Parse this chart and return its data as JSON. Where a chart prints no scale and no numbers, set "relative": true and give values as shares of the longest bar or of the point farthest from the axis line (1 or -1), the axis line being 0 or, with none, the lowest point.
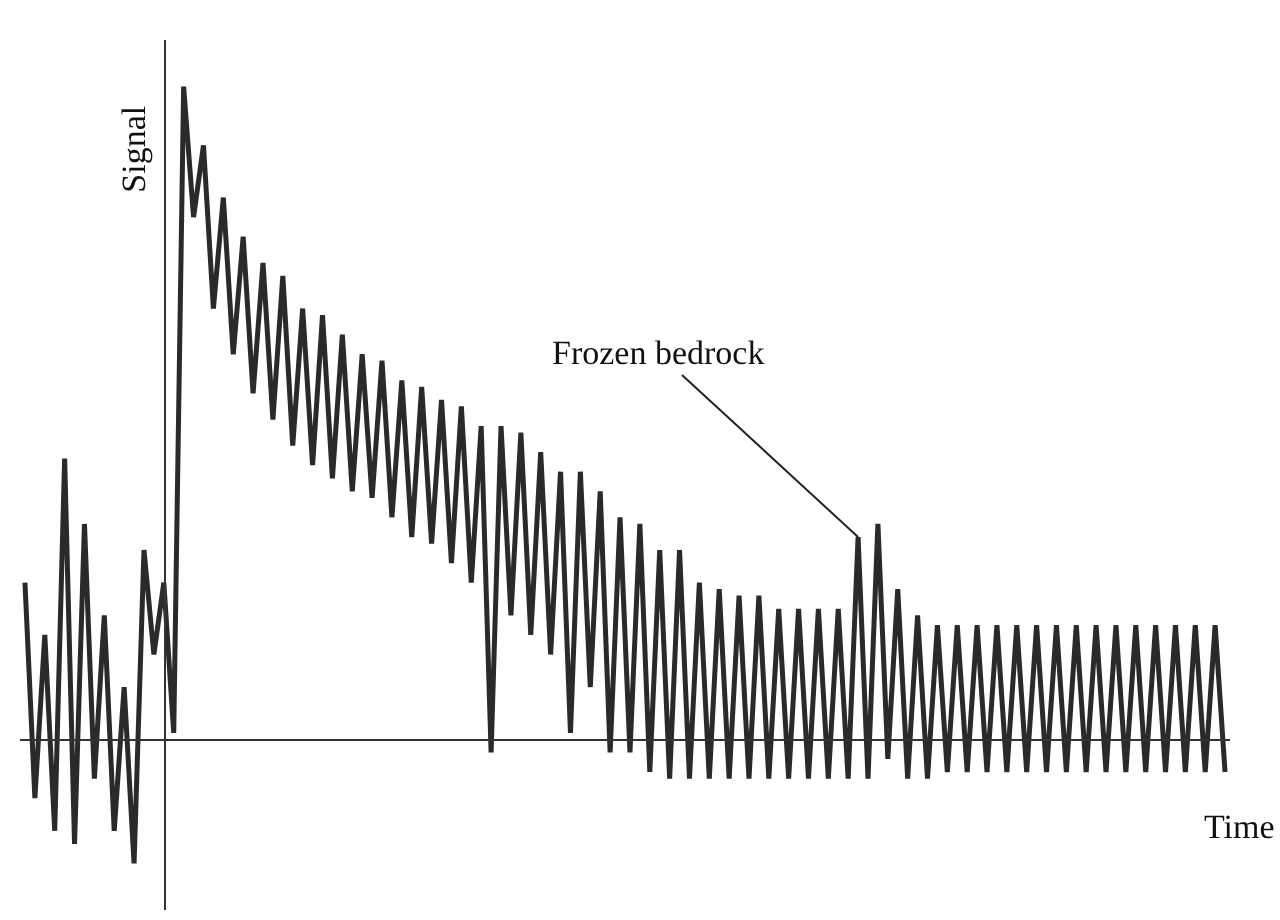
{
  "chart_data": {
    "type": "line",
    "relative": true,
    "xlabel": "Time",
    "ylabel": "Signal",
    "annotations": [
      "Frozen bedrock"
    ],
    "categories": [
      null,
      null,
      null,
      null,
      null,
      null,
      null,
      null,
      null,
      null,
      null,
      null,
      null,
      null,
      null,
      null,
      null,
      null,
      null,
      null,
      null,
      null,
      null,
      null,
      null,
      null,
      null,
      null,
      null,
      null,
      null,
      null,
      null,
      null,
      null,
      null,
      null,
      null,
      null,
      null,
      null,
      null,
      null,
      null,
      null,
      null,
      null,
      null,
      null,
      null,
      null,
      null,
      null,
      null,
      null,
      null,
      null,
      null,
      null,
      null,
      null,
      null,
      null,
      null,
      null,
      null,
      null,
      null,
      null,
      null,
      null,
      null,
      null,
      null,
      null,
      null,
      null,
      null,
      null,
      null,
      null,
      null,
      null,
      null,
      null,
      null,
      null,
      null,
      null,
      null,
      null,
      null,
      null,
      null,
      null,
      null,
      null,
      null,
      null,
      null,
      null,
      null,
      null,
      null,
      null,
      null,
      null,
      null,
      null,
      null,
      null,
      null,
      null,
      null,
      null,
      null,
      null,
      null,
      null,
      null,
      null,
      null
    ],
    "series": [
      {
        "color": "#2a2a2a",
        "values": [
          0.24,
          -0.09,
          0.16,
          -0.14,
          0.43,
          -0.16,
          0.33,
          -0.06,
          0.19,
          -0.14,
          0.08,
          -0.19,
          0.29,
          0.13,
          0.24,
          0.01,
          1.0,
          0.8,
          0.91,
          0.66,
          0.83,
          0.59,
          0.77,
          0.53,
          0.73,
          0.49,
          0.71,
          0.45,
          0.66,
          0.42,
          0.65,
          0.4,
          0.62,
          0.38,
          0.59,
          0.37,
          0.58,
          0.34,
          0.55,
          0.31,
          0.54,
          0.3,
          0.52,
          0.27,
          0.51,
          0.24,
          0.48,
          -0.02,
          0.48,
          0.19,
          0.47,
          0.16,
          0.44,
          0.13,
          0.41,
          0.01,
          0.41,
          0.08,
          0.38,
          -0.02,
          0.34,
          -0.02,
          0.33,
          -0.05,
          0.29,
          -0.06,
          0.29,
          -0.06,
          0.24,
          -0.06,
          0.23,
          -0.06,
          0.22,
          -0.06,
          0.22,
          -0.06,
          0.2,
          -0.06,
          0.2,
          -0.06,
          0.2,
          -0.06,
          0.2,
          -0.06,
          0.31,
          -0.06,
          0.33,
          -0.03,
          0.23,
          -0.06,
          0.19,
          -0.06,
          0.175,
          -0.05,
          0.175,
          -0.05,
          0.175,
          -0.05,
          0.175,
          -0.05,
          0.175,
          -0.05,
          0.175,
          -0.05,
          0.175,
          -0.05,
          0.175,
          -0.05,
          0.175,
          -0.05,
          0.175,
          -0.05,
          0.175,
          -0.05,
          0.175,
          -0.05,
          0.175,
          -0.05,
          0.175,
          -0.05,
          0.175,
          -0.05
        ]
      }
    ]
  }
}
